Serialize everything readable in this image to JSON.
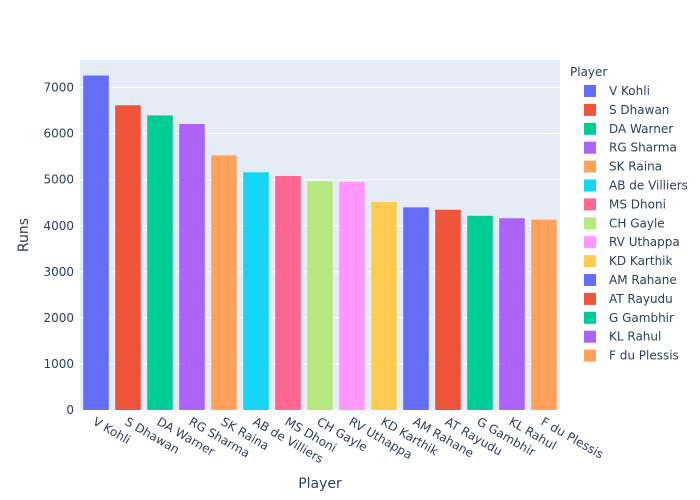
{
  "chart_data": {
    "type": "bar",
    "xlabel": "Player",
    "ylabel": "Runs",
    "ylim": [
      0,
      7600
    ],
    "yticks": [
      0,
      1000,
      2000,
      3000,
      4000,
      5000,
      6000,
      7000
    ],
    "grid": true,
    "legend_title": "Player",
    "legend_placement": "right",
    "categories": [
      "V Kohli",
      "S Dhawan",
      "DA Warner",
      "RG Sharma",
      "SK Raina",
      "AB de Villiers",
      "MS Dhoni",
      "CH Gayle",
      "RV Uthappa",
      "KD Karthik",
      "AM Rahane",
      "AT Rayudu",
      "G Gambhir",
      "KL Rahul",
      "F du Plessis"
    ],
    "values": [
      7263,
      6617,
      6397,
      6211,
      5528,
      5162,
      5082,
      4965,
      4952,
      4516,
      4400,
      4348,
      4217,
      4163,
      4133
    ],
    "colors": [
      "#636efa",
      "#EF553B",
      "#00cc96",
      "#ab63fa",
      "#FFA15A",
      "#19d3f3",
      "#FF6692",
      "#B6E880",
      "#FF97FF",
      "#FECB52",
      "#636efa",
      "#EF553B",
      "#00cc96",
      "#ab63fa",
      "#FFA15A"
    ]
  }
}
